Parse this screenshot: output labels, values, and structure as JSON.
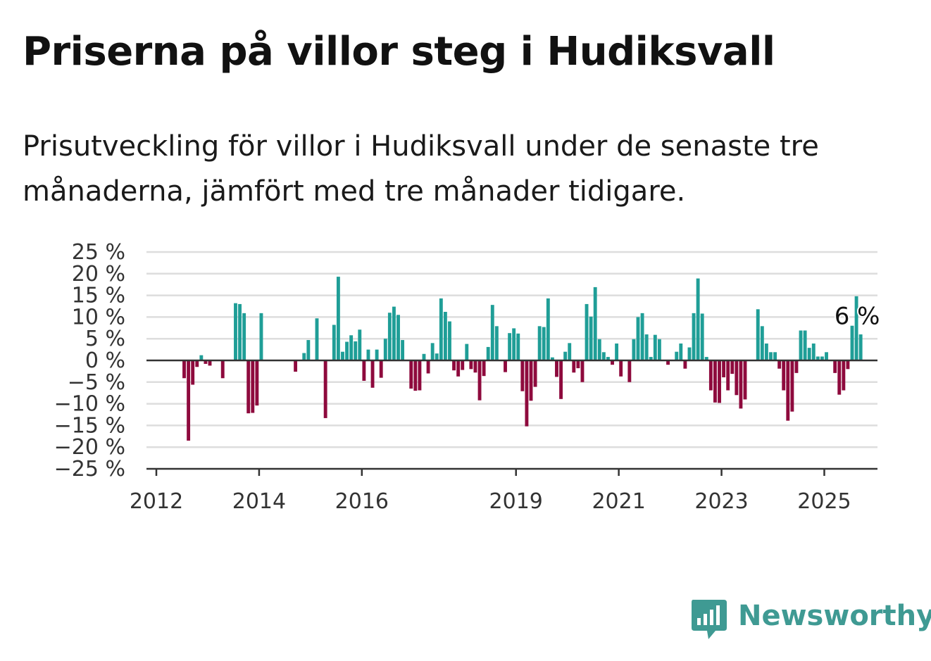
{
  "title": "Priserna på villor steg i Hudiksvall",
  "subtitle": "Prisutveckling för villor i Hudiksvall under de senaste tre månaderna, jämfört med tre månader tidigare.",
  "brand": {
    "name": "Newsworthy",
    "icon": "newsworthy-logo-icon",
    "color": "#3f9a93"
  },
  "colors": {
    "positive": "#1f9e97",
    "negative": "#8e0a3d",
    "grid": "#dddddd",
    "axis": "#333333"
  },
  "chart_data": {
    "type": "bar",
    "x_unit": "month",
    "start": "2012-01",
    "x_ticks": [
      "2012",
      "2014",
      "2016",
      "2019",
      "2021",
      "2023",
      "2025"
    ],
    "y_ticks": [
      "25 %",
      "20 %",
      "15 %",
      "10 %",
      "5 %",
      "0 %",
      "−5 %",
      "−10 %",
      "−15 %",
      "−20 %",
      "−25 %"
    ],
    "ylim": [
      -25,
      25
    ],
    "annotation": {
      "label": "6 %",
      "value": 6
    },
    "values": [
      null,
      null,
      null,
      null,
      null,
      null,
      -4.1,
      -18.5,
      -5.6,
      -1.5,
      1.2,
      -0.8,
      -1.2,
      null,
      null,
      -4.1,
      null,
      null,
      13.2,
      13.0,
      10.9,
      -12.2,
      -12.1,
      -10.4,
      10.9,
      null,
      null,
      null,
      null,
      null,
      null,
      null,
      -2.6,
      null,
      1.7,
      4.7,
      null,
      9.7,
      null,
      -13.3,
      null,
      8.2,
      19.3,
      2.0,
      4.3,
      5.8,
      4.4,
      7.1,
      -4.7,
      2.5,
      -6.3,
      2.5,
      -4.0,
      5.0,
      11.0,
      12.4,
      10.5,
      4.7,
      null,
      -6.5,
      -7.0,
      -6.9,
      1.5,
      -3.0,
      4.0,
      1.6,
      14.3,
      11.2,
      9.0,
      -2.3,
      -3.7,
      -2.2,
      3.8,
      -2.0,
      -2.8,
      -9.2,
      -3.6,
      3.1,
      12.8,
      7.9,
      null,
      -2.7,
      6.3,
      7.4,
      6.2,
      -7.1,
      -15.2,
      -9.3,
      -6.1,
      7.9,
      7.7,
      14.3,
      0.7,
      -3.8,
      -8.9,
      2.0,
      4.0,
      -2.8,
      -1.8,
      -5.0,
      13.0,
      10.1,
      16.9,
      4.9,
      1.9,
      0.8,
      -1.0,
      3.9,
      -3.7,
      null,
      -5.0,
      4.9,
      10.0,
      10.9,
      6.0,
      0.8,
      5.9,
      4.9,
      null,
      -1.0,
      null,
      2.0,
      3.9,
      -1.9,
      3.0,
      10.9,
      18.9,
      10.8,
      0.8,
      -6.9,
      -9.7,
      -9.8,
      -3.9,
      -6.9,
      -3.1,
      -8.0,
      -11.1,
      -9.0,
      null,
      null,
      11.8,
      7.9,
      3.9,
      1.9,
      1.9,
      -1.9,
      -6.9,
      -13.9,
      -11.8,
      -2.9,
      6.9,
      6.9,
      2.9,
      3.9,
      0.9,
      0.9,
      1.9,
      null,
      -2.9,
      -7.9,
      -6.9,
      -2.0,
      8.0,
      14.8,
      6.0
    ]
  }
}
